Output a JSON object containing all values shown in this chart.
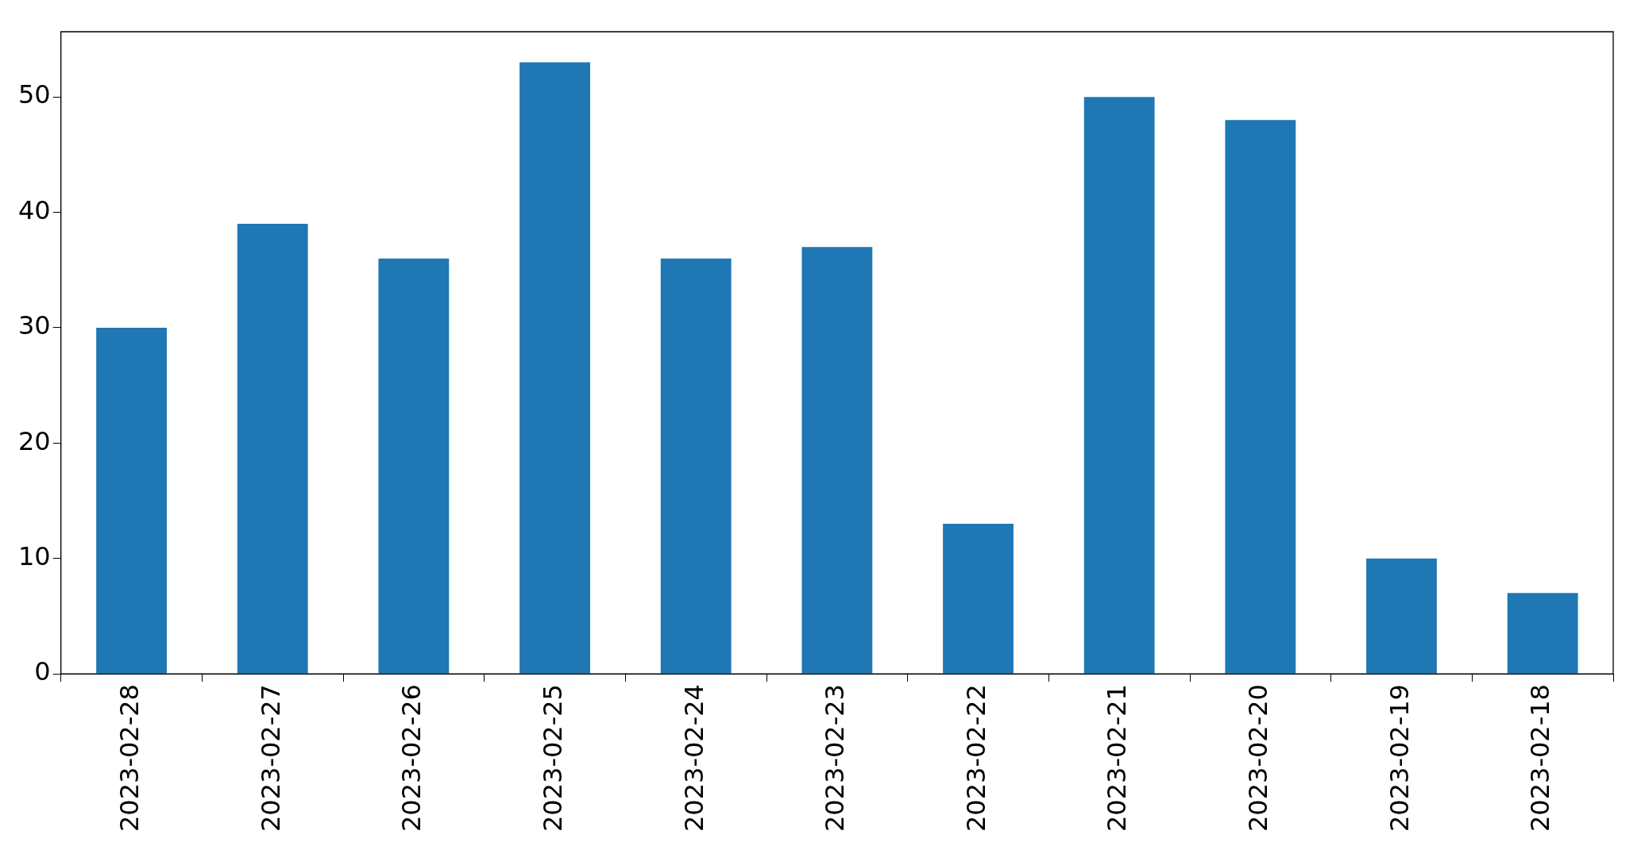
{
  "chart_data": {
    "type": "bar",
    "categories": [
      "2023-02-28",
      "2023-02-27",
      "2023-02-26",
      "2023-02-25",
      "2023-02-24",
      "2023-02-23",
      "2023-02-22",
      "2023-02-21",
      "2023-02-20",
      "2023-02-19",
      "2023-02-18"
    ],
    "values": [
      30,
      39,
      36,
      53,
      36,
      37,
      13,
      50,
      48,
      10,
      7
    ],
    "color": "#1f77b4",
    "ylim": [
      0,
      55.65
    ],
    "yticks": [
      0,
      10,
      20,
      30,
      40,
      50
    ],
    "grid": false,
    "legend": false
  }
}
